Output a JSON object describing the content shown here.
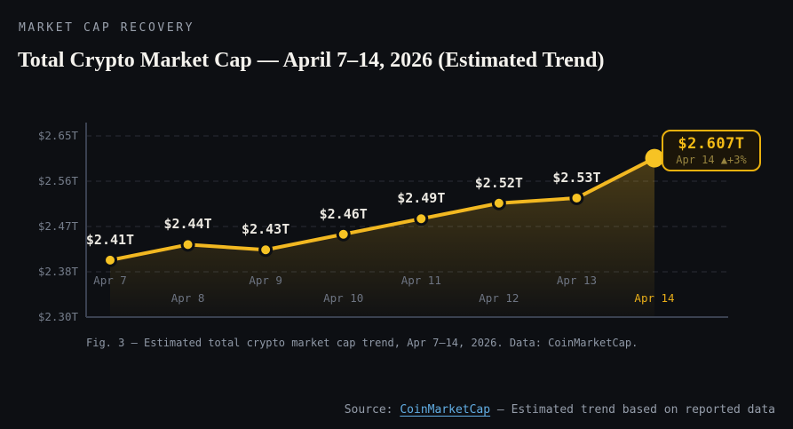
{
  "eyebrow": "MARKET CAP RECOVERY",
  "title": "Total Crypto Market Cap — April 7–14, 2026 (Estimated Trend)",
  "chart_data": {
    "type": "line",
    "title": "Total Crypto Market Cap — April 7–14, 2026 (Estimated Trend)",
    "x": [
      "Apr 7",
      "Apr 8",
      "Apr 9",
      "Apr 10",
      "Apr 11",
      "Apr 12",
      "Apr 13",
      "Apr 14"
    ],
    "values": [
      2.41,
      2.44,
      2.43,
      2.46,
      2.49,
      2.52,
      2.53,
      2.607
    ],
    "point_labels": [
      "$2.41T",
      "$2.44T",
      "$2.43T",
      "$2.46T",
      "$2.49T",
      "$2.52T",
      "$2.53T",
      "$2.607T"
    ],
    "xlabel": "",
    "ylabel": "",
    "ylim": [
      2.3,
      2.65
    ],
    "y_ticks": [
      "$2.65T",
      "$2.56T",
      "$2.47T",
      "$2.38T",
      "$2.30T"
    ],
    "grid": true,
    "legend": false,
    "highlight_x": "Apr 14",
    "line_color": "#f2b821",
    "point_color": "#f6c324",
    "area_top_color": "rgba(242,184,33,0.26)",
    "area_bottom_color": "rgba(242,184,33,0.02)",
    "callout": {
      "value": "$2.607T",
      "sub": "Apr 14 ▲+3%"
    }
  },
  "caption": "Fig. 3 — Estimated total crypto market cap trend, Apr 7–14, 2026. Data: CoinMarketCap.",
  "footer": {
    "prefix": "Source: ",
    "link": "CoinMarketCap",
    "suffix": " — Estimated trend based on reported data"
  },
  "colors": {
    "background": "#0d0f13",
    "accent_gold": "#f2b821",
    "callout_border": "#eab10e",
    "link_blue": "#62aee4",
    "grid": "#2a2e37",
    "muted_text": "#757d8b"
  }
}
